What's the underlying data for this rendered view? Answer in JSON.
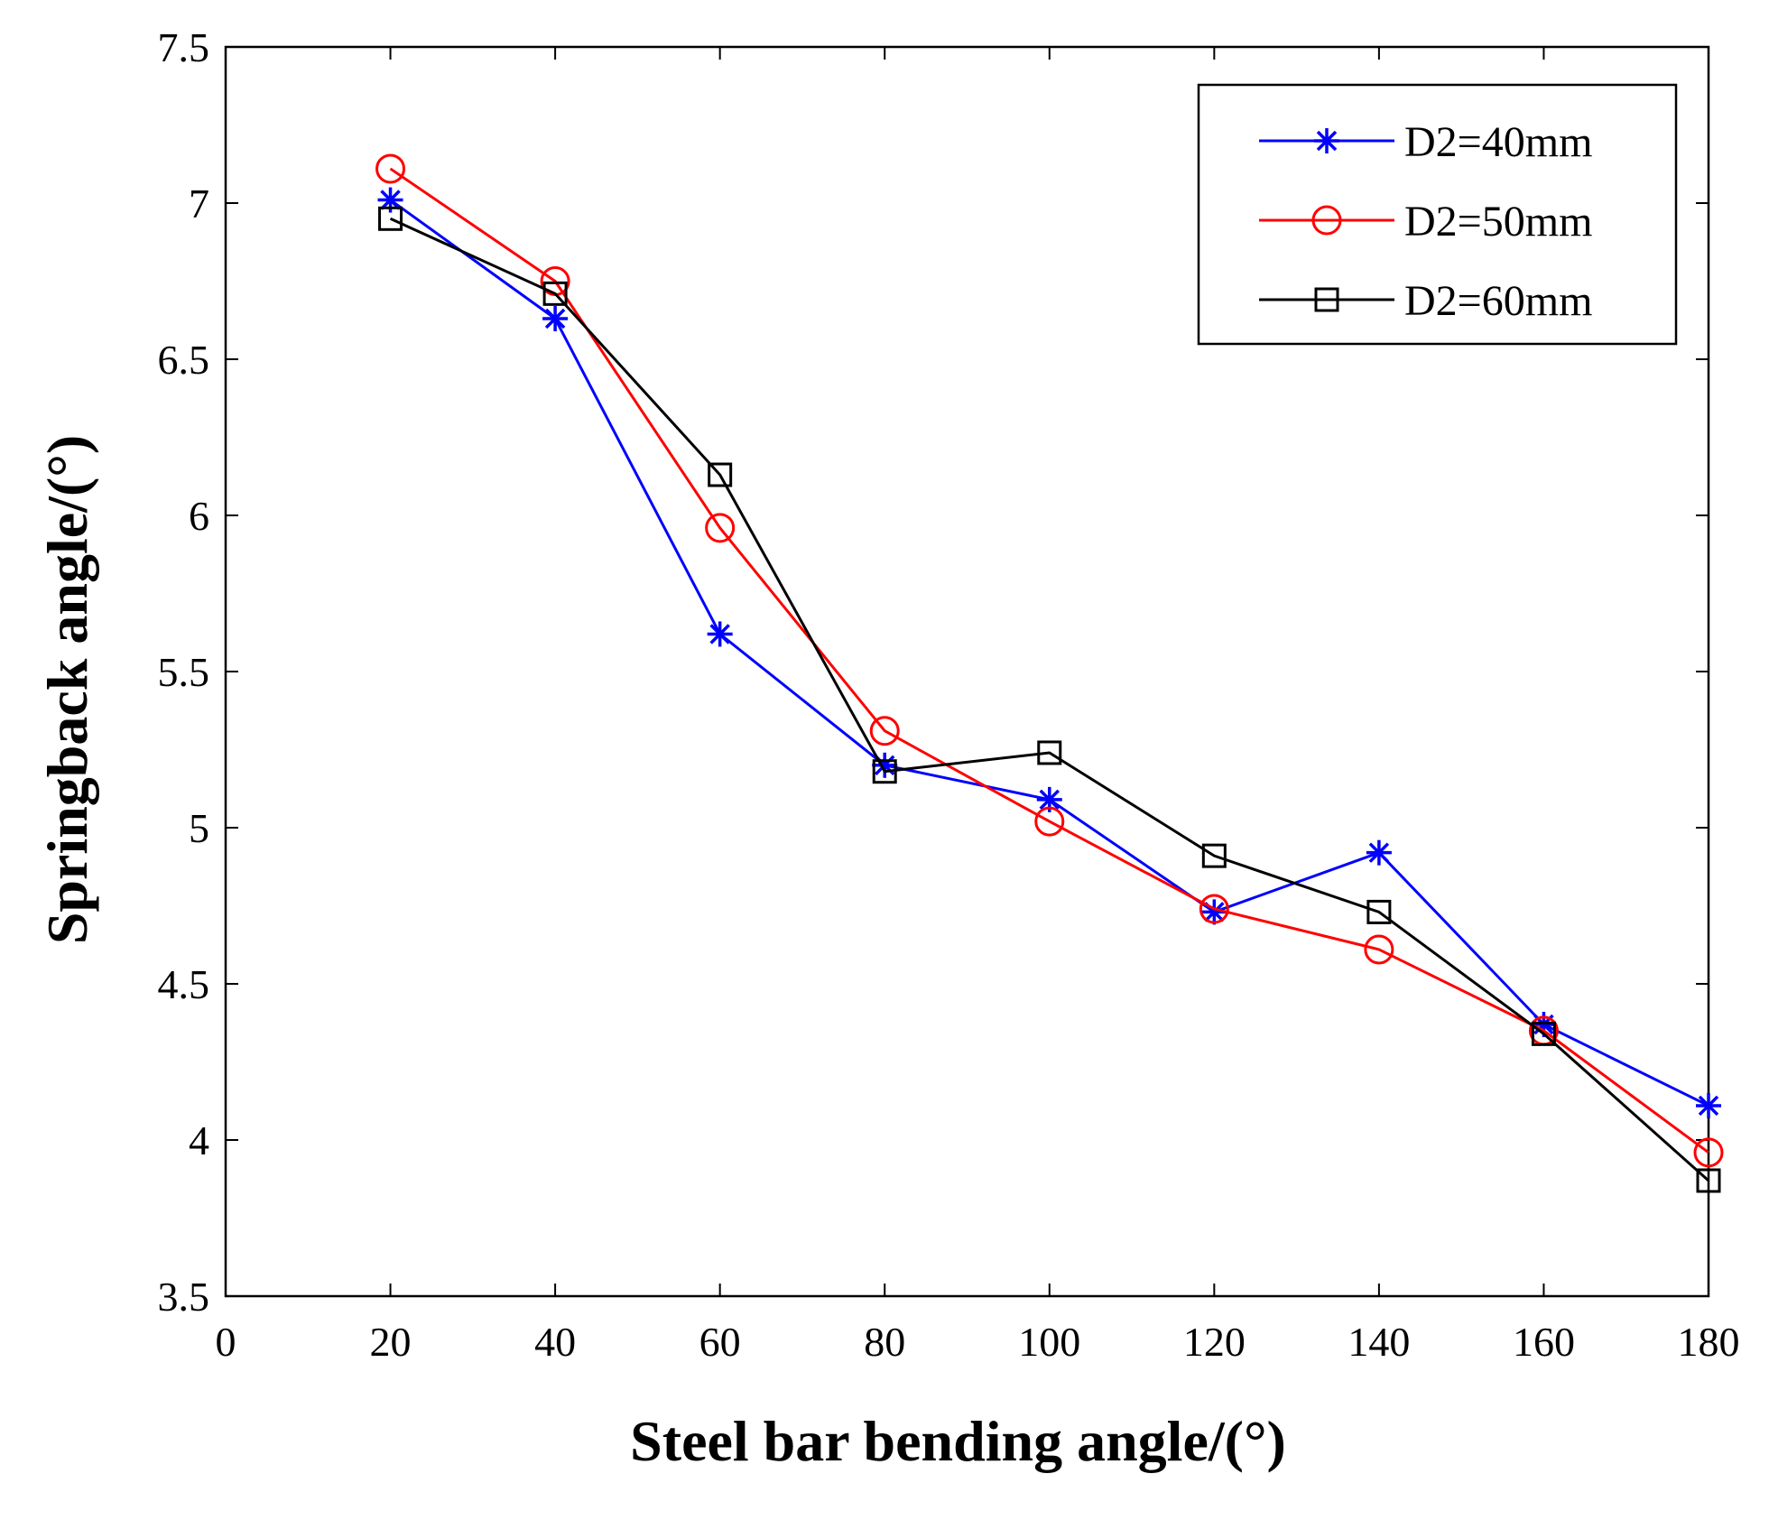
{
  "chart_data": {
    "type": "line",
    "title": "",
    "xlabel": "Steel bar bending angle/(°)",
    "ylabel": "Springback angle/(°)",
    "xlim": [
      0,
      180
    ],
    "ylim": [
      3.5,
      7.5
    ],
    "xticks": [
      0,
      20,
      40,
      60,
      80,
      100,
      120,
      140,
      160,
      180
    ],
    "yticks": [
      3.5,
      4,
      4.5,
      5,
      5.5,
      6,
      6.5,
      7,
      7.5
    ],
    "xtick_labels": [
      "0",
      "20",
      "40",
      "60",
      "80",
      "100",
      "120",
      "140",
      "160",
      "180"
    ],
    "ytick_labels": [
      "3.5",
      "4",
      "4.5",
      "5",
      "5.5",
      "6",
      "6.5",
      "7",
      "7.5"
    ],
    "grid": false,
    "legend_position": "top-right",
    "x": [
      20,
      40,
      60,
      80,
      100,
      120,
      140,
      160,
      180
    ],
    "series": [
      {
        "name": "D2=40mm",
        "color": "#0000ff",
        "marker": "star",
        "values": [
          7.01,
          6.63,
          5.62,
          5.2,
          5.09,
          4.73,
          4.92,
          4.37,
          4.11
        ]
      },
      {
        "name": "D2=50mm",
        "color": "#ff0000",
        "marker": "circle",
        "values": [
          7.11,
          6.75,
          5.96,
          5.31,
          5.02,
          4.74,
          4.61,
          4.35,
          3.96
        ]
      },
      {
        "name": "D2=60mm",
        "color": "#000000",
        "marker": "square",
        "values": [
          6.95,
          6.71,
          6.13,
          5.18,
          5.24,
          4.91,
          4.73,
          4.34,
          3.87
        ]
      }
    ]
  }
}
